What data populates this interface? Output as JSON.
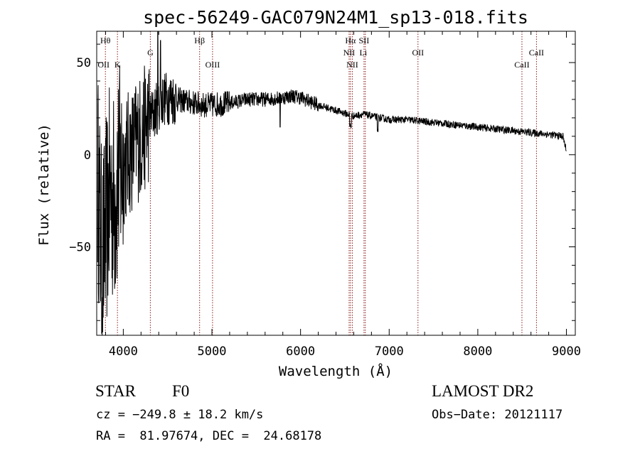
{
  "chart_data": {
    "type": "line",
    "title": "spec-56249-GAC079N24M1_sp13-018.fits",
    "xlabel": "Wavelength (Å)",
    "ylabel": "Flux (relative)",
    "xlim": [
      3700,
      9100
    ],
    "ylim": [
      -98,
      67
    ],
    "x_ticks": [
      4000,
      5000,
      6000,
      7000,
      8000,
      9000
    ],
    "y_ticks": [
      -50,
      0,
      50
    ],
    "x_tick_labels": [
      "4000",
      "5000",
      "6000",
      "7000",
      "8000",
      "9000"
    ],
    "y_tick_labels": [
      "−50",
      "0",
      "50"
    ],
    "grid": false,
    "line_color": "#000000",
    "marker_color": "#8b1a1a",
    "spectrum_anchor_points": [
      [
        3700,
        0
      ],
      [
        3760,
        -60
      ],
      [
        3800,
        -40
      ],
      [
        3850,
        -20
      ],
      [
        3900,
        -25
      ],
      [
        3950,
        -10
      ],
      [
        4000,
        -5
      ],
      [
        4050,
        0
      ],
      [
        4100,
        3
      ],
      [
        4150,
        8
      ],
      [
        4200,
        10
      ],
      [
        4250,
        15
      ],
      [
        4300,
        20
      ],
      [
        4350,
        23
      ],
      [
        4400,
        27
      ],
      [
        4450,
        30
      ],
      [
        4500,
        31
      ],
      [
        4600,
        30
      ],
      [
        4700,
        29
      ],
      [
        4800,
        28
      ],
      [
        4900,
        27
      ],
      [
        5000,
        27
      ],
      [
        5200,
        28
      ],
      [
        5400,
        30
      ],
      [
        5600,
        30
      ],
      [
        5800,
        31
      ],
      [
        5900,
        32
      ],
      [
        6000,
        31
      ],
      [
        6200,
        27
      ],
      [
        6400,
        24
      ],
      [
        6600,
        21
      ],
      [
        6700,
        22
      ],
      [
        6800,
        21
      ],
      [
        7000,
        19
      ],
      [
        7200,
        19
      ],
      [
        7400,
        18
      ],
      [
        7600,
        17
      ],
      [
        7800,
        16
      ],
      [
        8000,
        15
      ],
      [
        8200,
        14
      ],
      [
        8400,
        13
      ],
      [
        8600,
        12
      ],
      [
        8800,
        11
      ],
      [
        8960,
        10
      ],
      [
        9000,
        2
      ]
    ],
    "line_markers": [
      {
        "label": "Hθ",
        "x": 3798,
        "row": 0,
        "align": "center"
      },
      {
        "label": "OII",
        "x": 3727,
        "row": 2,
        "align": "left"
      },
      {
        "label": "K",
        "x": 3934,
        "row": 2,
        "align": "center"
      },
      {
        "label": "G",
        "x": 4305,
        "row": 1,
        "align": "center"
      },
      {
        "label": "Hβ",
        "x": 4861,
        "row": 0,
        "align": "center"
      },
      {
        "label": "OIII",
        "x": 5007,
        "row": 2,
        "align": "center"
      },
      {
        "label": "Hα",
        "x": 6563,
        "row": 0,
        "align": "center"
      },
      {
        "label": "SII",
        "x": 6716,
        "row": 0,
        "align": "center"
      },
      {
        "label": "NII",
        "x": 6548,
        "row": 1,
        "align": "center"
      },
      {
        "label": "Li",
        "x": 6708,
        "row": 1,
        "align": "center"
      },
      {
        "label": "NII",
        "x": 6584,
        "row": 2,
        "align": "center"
      },
      {
        "label": "OII",
        "x": 7325,
        "row": 1,
        "align": "center"
      },
      {
        "label": "CaII",
        "x": 8662,
        "row": 1,
        "align": "center"
      },
      {
        "label": "CaII",
        "x": 8498,
        "row": 2,
        "align": "center"
      }
    ],
    "marker_lines_x": [
      3798,
      3934,
      4305,
      4861,
      5007,
      6548,
      6563,
      6584,
      6716,
      6731,
      7325,
      8498,
      8662
    ]
  },
  "info": {
    "class_label": "STAR",
    "subclass": "F0",
    "survey": "LAMOST DR2",
    "velocity": "cz = −249.8 ± 18.2 km/s",
    "obs_date": "Obs−Date: 20121117",
    "coords": "RA =  81.97674, DEC =  24.68178"
  }
}
